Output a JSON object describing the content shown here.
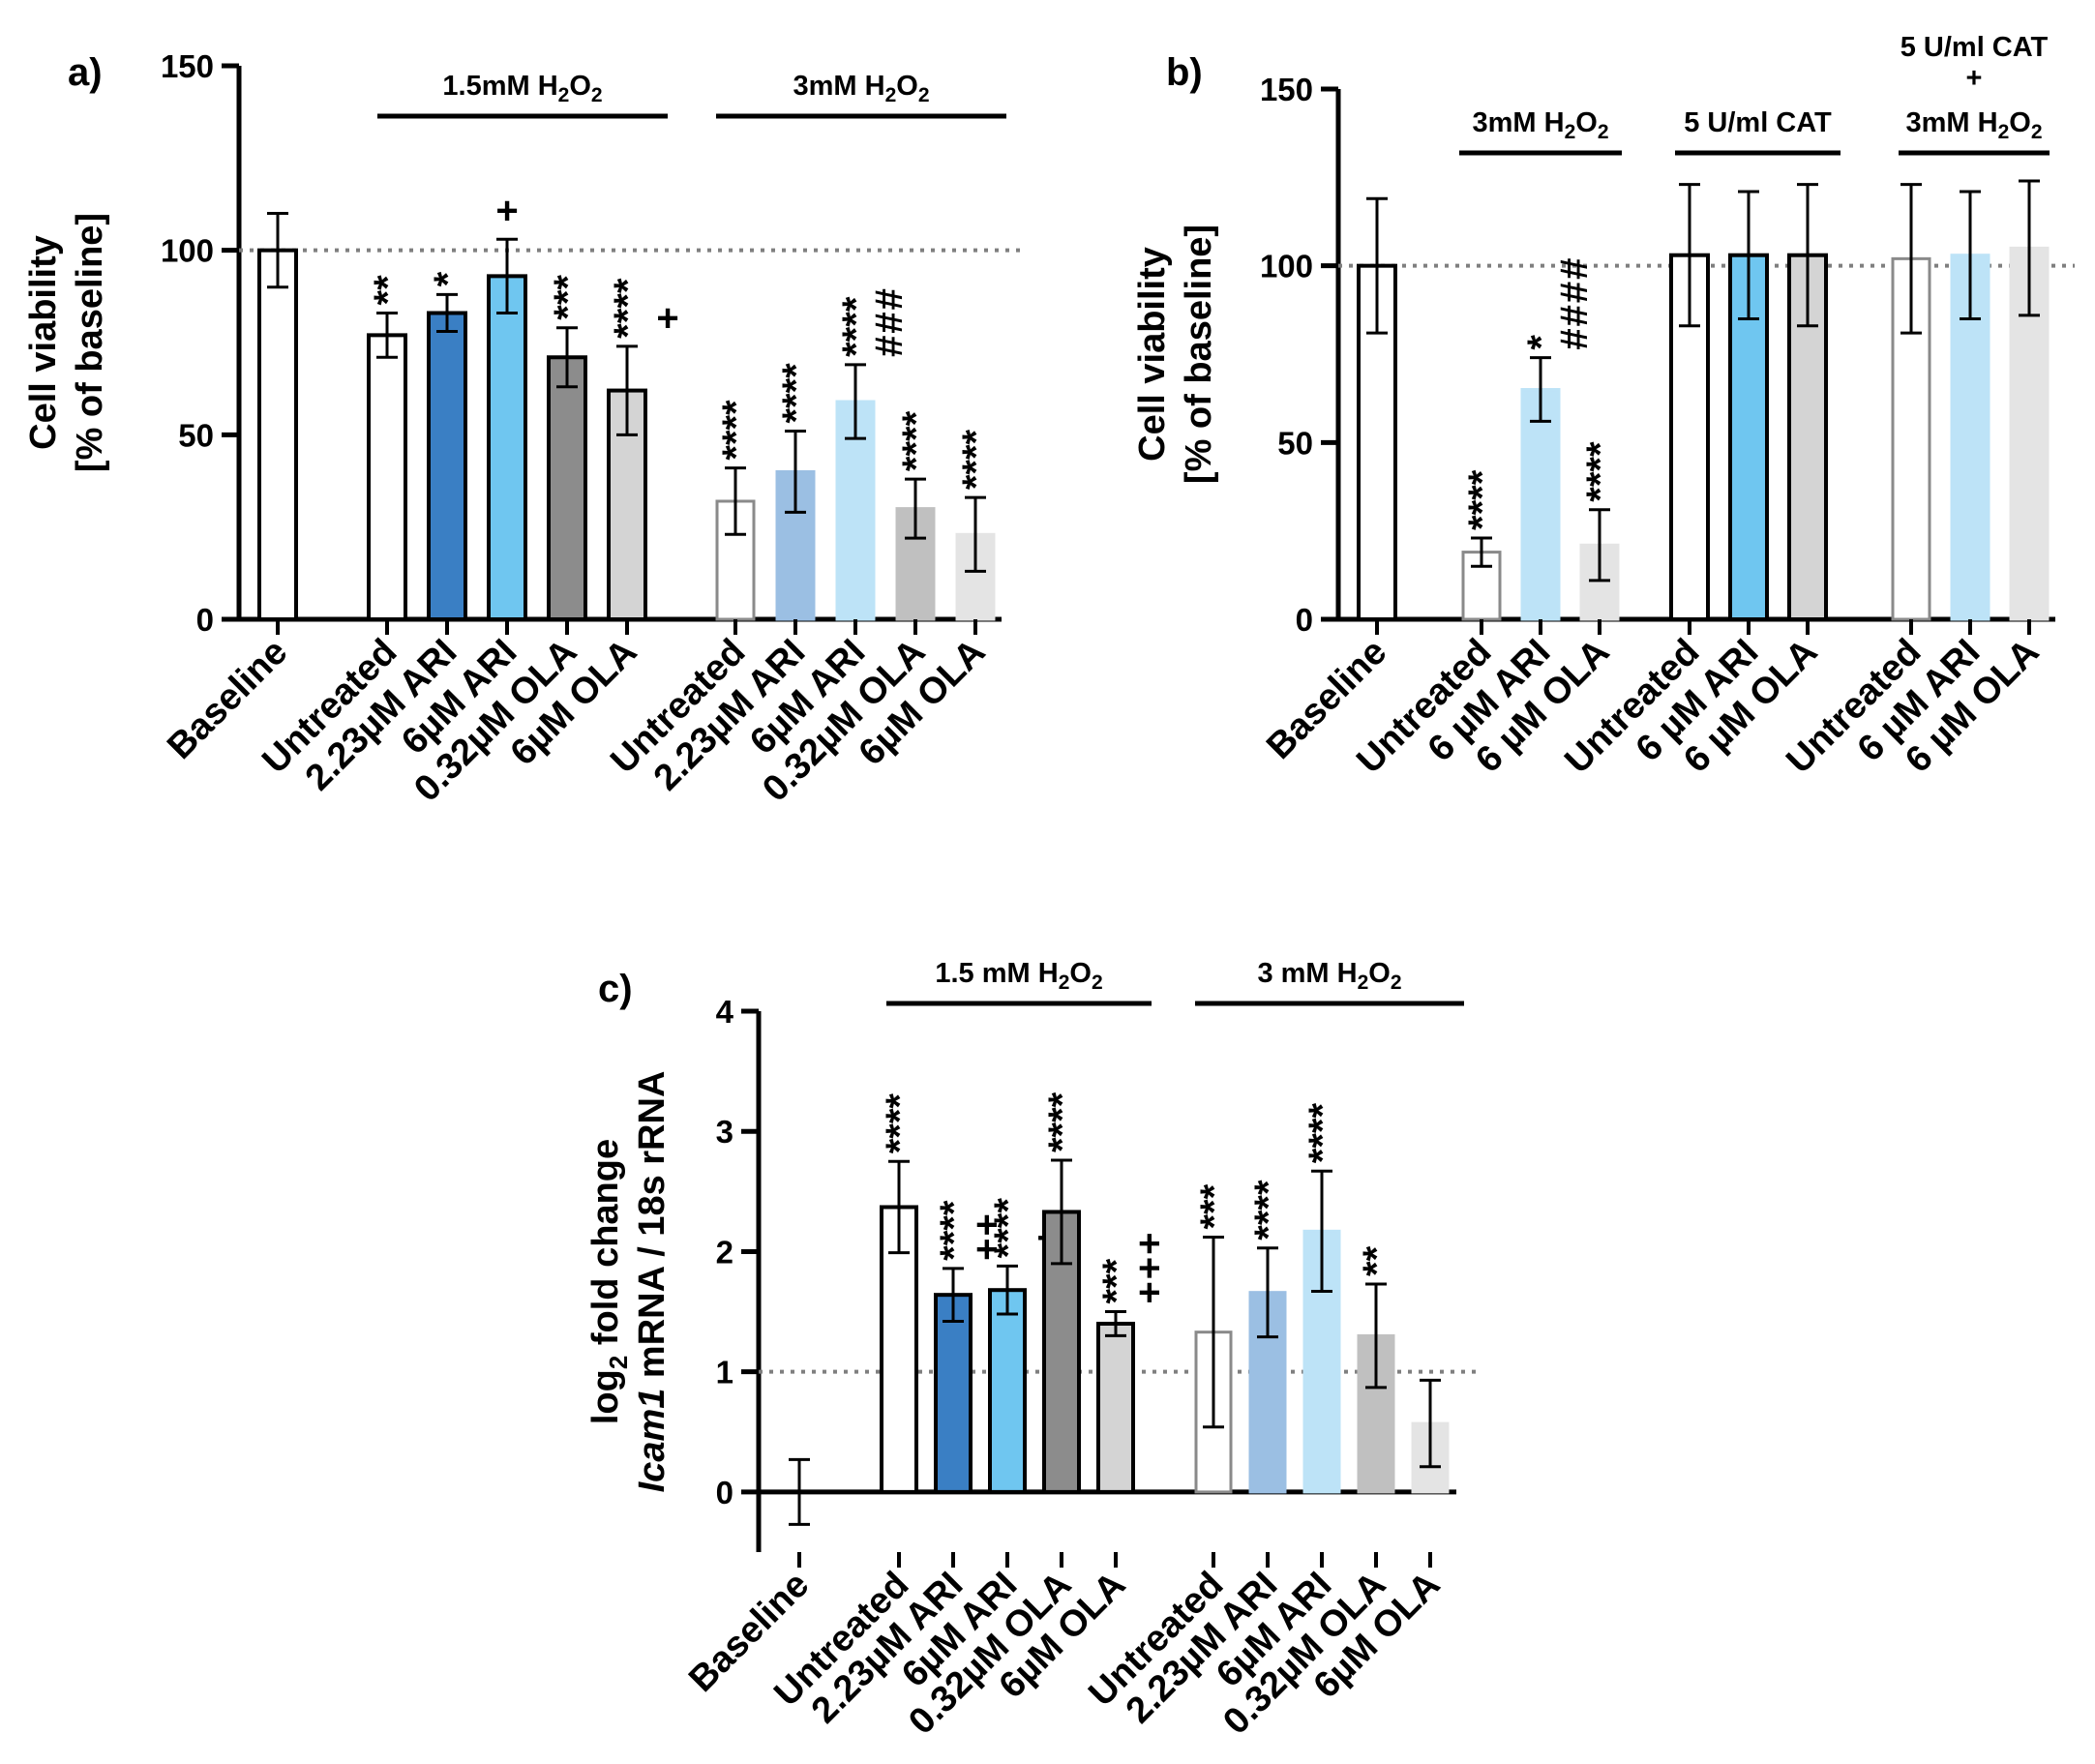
{
  "colors": {
    "white": "#ffffff",
    "dark_blue": "#3a7fc4",
    "light_blue": "#6fc6f0",
    "dark_gray": "#8c8c8c",
    "light_gray": "#d4d4d4",
    "faint_dark_blue": "#9bbfe3",
    "faint_light_blue": "#bde3f7",
    "faint_dark_gray": "#c0c0c0",
    "faint_light_gray": "#e4e4e4",
    "sig_black": "#000000",
    "sig_red": "#e8221c",
    "sig_blue": "#3f8fd6",
    "axis": "#000000",
    "reference_line": "#7f7f7f"
  },
  "chart_data": [
    {
      "panel_label": "a)",
      "type": "bar",
      "ylabel": [
        "Cell viability",
        "[% of baseline]"
      ],
      "ylim": [
        0,
        150
      ],
      "yticks": [
        "0",
        "50",
        "100",
        "150"
      ],
      "reference_line": 100,
      "group_labels": [
        {
          "text": "1.5mM H",
          "sub": "2",
          "text2": "O",
          "sub2": "2",
          "from": 1,
          "to": 5
        },
        {
          "text": "3mM H",
          "sub": "2",
          "text2": "O",
          "sub2": "2",
          "from": 6,
          "to": 10
        }
      ],
      "bars": [
        {
          "label": "Baseline",
          "value": 100,
          "err": 10,
          "fill": "white",
          "edge": "solid",
          "sig": []
        },
        {
          "label": "Untreated",
          "value": 77,
          "err": 6,
          "fill": "white",
          "edge": "solid",
          "sig": [
            {
              "t": "**",
              "c": "sig_black"
            }
          ]
        },
        {
          "label": "2.23µM ARI",
          "value": 83,
          "err": 5,
          "fill": "dark_blue",
          "edge": "solid",
          "sig": [
            {
              "t": "*",
              "c": "sig_black"
            }
          ]
        },
        {
          "label": "6µM ARI",
          "value": 93,
          "err": 10,
          "fill": "light_blue",
          "edge": "solid",
          "sig": [],
          "side": [
            {
              "t": "+",
              "c": "sig_red"
            }
          ]
        },
        {
          "label": "0.32µM OLA",
          "value": 71,
          "err": 8,
          "fill": "dark_gray",
          "edge": "solid",
          "sig": [
            {
              "t": "***",
              "c": "sig_black"
            }
          ]
        },
        {
          "label": "6µM OLA",
          "value": 62,
          "err": 12,
          "fill": "light_gray",
          "edge": "solid",
          "sig": [
            {
              "t": "****",
              "c": "sig_black"
            }
          ],
          "side": [
            {
              "t": "+",
              "c": "sig_red"
            }
          ]
        },
        {
          "label": "Untreated",
          "value": 32,
          "err": 9,
          "fill": "white",
          "edge": "faint",
          "sig": [
            {
              "t": "****",
              "c": "sig_black"
            }
          ]
        },
        {
          "label": "2.23µM ARI",
          "value": 40,
          "err": 11,
          "fill": "faint_dark_blue",
          "edge": "faint",
          "sig": [
            {
              "t": "****",
              "c": "sig_black"
            }
          ]
        },
        {
          "label": "6µM ARI",
          "value": 59,
          "err": 10,
          "fill": "faint_light_blue",
          "edge": "faint",
          "sig": [
            {
              "t": "****",
              "c": "sig_black"
            }
          ],
          "side": [
            {
              "t": "###",
              "c": "sig_blue"
            }
          ]
        },
        {
          "label": "0.32µM OLA",
          "value": 30,
          "err": 8,
          "fill": "faint_dark_gray",
          "edge": "faint",
          "sig": [
            {
              "t": "****",
              "c": "sig_black"
            }
          ]
        },
        {
          "label": "6µM OLA",
          "value": 23,
          "err": 10,
          "fill": "faint_light_gray",
          "edge": "faint",
          "sig": [
            {
              "t": "****",
              "c": "sig_black"
            }
          ]
        }
      ]
    },
    {
      "panel_label": "b)",
      "type": "bar",
      "ylabel": [
        "Cell viability",
        "[% of baseline]"
      ],
      "ylim": [
        0,
        150
      ],
      "yticks": [
        "0",
        "50",
        "100",
        "150"
      ],
      "reference_line": 100,
      "group_labels": [
        {
          "text": "3mM H",
          "sub": "2",
          "text2": "O",
          "sub2": "2",
          "from": 1,
          "to": 3
        },
        {
          "text": "5 U/ml CAT",
          "from": 4,
          "to": 6
        },
        {
          "text": "5 U/ml CAT",
          "line2": "+",
          "line3": "3mM H",
          "sub": "2",
          "text2": "O",
          "sub2": "2",
          "from": 7,
          "to": 9
        }
      ],
      "bars": [
        {
          "label": "Baseline",
          "value": 100,
          "err": 19,
          "fill": "white",
          "edge": "solid",
          "sig": []
        },
        {
          "label": "Untreated",
          "value": 19,
          "err": 4,
          "fill": "white",
          "edge": "faint",
          "sig": [
            {
              "t": "****",
              "c": "sig_black"
            }
          ]
        },
        {
          "label": "6 µM ARI",
          "value": 65,
          "err": 9,
          "fill": "faint_light_blue",
          "edge": "faint",
          "sig": [
            {
              "t": "*",
              "c": "sig_black"
            }
          ],
          "side": [
            {
              "t": "####",
              "c": "sig_blue"
            }
          ]
        },
        {
          "label": "6 µM OLA",
          "value": 21,
          "err": 10,
          "fill": "faint_light_gray",
          "edge": "faint",
          "sig": [
            {
              "t": "****",
              "c": "sig_black"
            }
          ]
        },
        {
          "label": "Untreated",
          "value": 103,
          "err": 20,
          "fill": "white",
          "edge": "solid",
          "sig": []
        },
        {
          "label": "6 µM ARI",
          "value": 103,
          "err": 18,
          "fill": "light_blue",
          "edge": "solid",
          "sig": []
        },
        {
          "label": "6 µM OLA",
          "value": 103,
          "err": 20,
          "fill": "light_gray",
          "edge": "solid",
          "sig": []
        },
        {
          "label": "Untreated",
          "value": 102,
          "err": 21,
          "fill": "white",
          "edge": "faint",
          "sig": []
        },
        {
          "label": "6 µM ARI",
          "value": 103,
          "err": 18,
          "fill": "faint_light_blue",
          "edge": "faint",
          "sig": []
        },
        {
          "label": "6 µM OLA",
          "value": 105,
          "err": 19,
          "fill": "faint_light_gray",
          "edge": "faint",
          "sig": []
        }
      ]
    },
    {
      "panel_label": "c)",
      "type": "bar",
      "ylabel": [
        "log",
        "2",
        " fold change",
        "Icam1",
        " mRNA / 18s rRNA"
      ],
      "ylim": [
        -0.5,
        4
      ],
      "yticks": [
        "0",
        "1",
        "2",
        "3",
        "4"
      ],
      "reference_line": 1,
      "group_labels": [
        {
          "text": "1.5 mM H",
          "sub": "2",
          "text2": "O",
          "sub2": "2",
          "from": 1,
          "to": 5
        },
        {
          "text": "3 mM H",
          "sub": "2",
          "text2": "O",
          "sub2": "2",
          "from": 6,
          "to": 10
        }
      ],
      "bars": [
        {
          "label": "Baseline",
          "value": 0,
          "err": 0.27,
          "fill": "white",
          "edge": "solid",
          "sig": []
        },
        {
          "label": "Untreated",
          "value": 2.37,
          "err": 0.38,
          "fill": "white",
          "edge": "solid",
          "sig": [
            {
              "t": "****",
              "c": "sig_black"
            }
          ]
        },
        {
          "label": "2.23µM ARI",
          "value": 1.64,
          "err": 0.22,
          "fill": "dark_blue",
          "edge": "solid",
          "sig": [
            {
              "t": "****",
              "c": "sig_black"
            }
          ],
          "side": [
            {
              "t": "++",
              "c": "sig_red"
            }
          ]
        },
        {
          "label": "6µM ARI",
          "value": 1.68,
          "err": 0.2,
          "fill": "light_blue",
          "edge": "solid",
          "sig": [
            {
              "t": "****",
              "c": "sig_black"
            }
          ],
          "side": [
            {
              "t": "+",
              "c": "sig_red"
            }
          ]
        },
        {
          "label": "0.32µM OLA",
          "value": 2.33,
          "err": 0.43,
          "fill": "dark_gray",
          "edge": "solid",
          "sig": [
            {
              "t": "****",
              "c": "sig_black"
            }
          ]
        },
        {
          "label": "6µM OLA",
          "value": 1.4,
          "err": 0.1,
          "fill": "light_gray",
          "edge": "solid",
          "sig": [
            {
              "t": "***",
              "c": "sig_black"
            }
          ],
          "side": [
            {
              "t": "+++",
              "c": "sig_red"
            }
          ]
        },
        {
          "label": "Untreated",
          "value": 1.33,
          "err": 0.79,
          "fill": "white",
          "edge": "faint",
          "sig": [
            {
              "t": "***",
              "c": "sig_black"
            }
          ]
        },
        {
          "label": "2.23µM ARI",
          "value": 1.66,
          "err": 0.37,
          "fill": "faint_dark_blue",
          "edge": "faint",
          "sig": [
            {
              "t": "****",
              "c": "sig_black"
            }
          ]
        },
        {
          "label": "6µM ARI",
          "value": 2.17,
          "err": 0.5,
          "fill": "faint_light_blue",
          "edge": "faint",
          "sig": [
            {
              "t": "****",
              "c": "sig_black"
            }
          ]
        },
        {
          "label": "0.32µM OLA",
          "value": 1.3,
          "err": 0.43,
          "fill": "faint_dark_gray",
          "edge": "faint",
          "sig": [
            {
              "t": "**",
              "c": "sig_black"
            }
          ]
        },
        {
          "label": "6µM OLA",
          "value": 0.57,
          "err": 0.36,
          "fill": "faint_light_gray",
          "edge": "faint",
          "sig": []
        }
      ]
    }
  ]
}
